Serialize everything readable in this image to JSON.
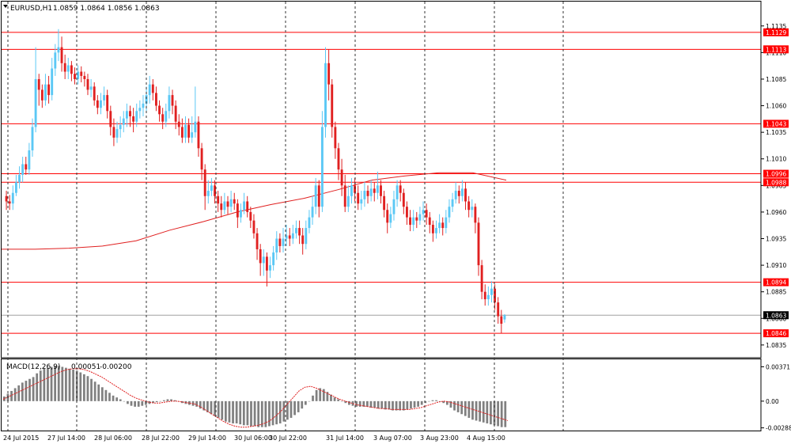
{
  "chart_data": [
    {
      "type": "candlestick",
      "symbol": "EURUSD,H1",
      "ohlc_label": "1.0859 1.0864 1.0856 1.0863",
      "price_axis": {
        "ylim": [
          1.0823,
          1.1146
        ],
        "ticks": [
          "1.1135",
          "1.1110",
          "1.1085",
          "1.1060",
          "1.1035",
          "1.1010",
          "1.0985",
          "1.0960",
          "1.0935",
          "1.0910",
          "1.0885",
          "1.0860",
          "1.0835"
        ]
      },
      "horizontal_levels": [
        "1.1129",
        "1.1113",
        "1.1043",
        "1.0996",
        "1.0988",
        "1.0894",
        "1.0846"
      ],
      "current_price": "1.0863",
      "moving_average_approx": [
        1.0925,
        1.0925,
        1.0926,
        1.0928,
        1.0933,
        1.0943,
        1.0951,
        1.096,
        1.0967,
        1.0973,
        1.0981,
        1.099,
        1.0994,
        1.0997,
        1.0997,
        1.099
      ],
      "candles": [
        [
          1.0975,
          1.097,
          1.098,
          1.0962
        ],
        [
          1.097,
          1.0968,
          1.0976,
          1.0962
        ],
        [
          1.0968,
          1.0978,
          1.0985,
          1.0962
        ],
        [
          1.0978,
          1.0988,
          1.0995,
          1.0975
        ],
        [
          1.0988,
          1.0995,
          1.1003,
          1.0982
        ],
        [
          1.0995,
          1.1005,
          1.1012,
          1.0988
        ],
        [
          1.1005,
          1.1,
          1.1012,
          1.0995
        ],
        [
          1.1,
          1.1018,
          1.1025,
          1.0995
        ],
        [
          1.1018,
          1.104,
          1.1048,
          1.1012
        ],
        [
          1.104,
          1.1085,
          1.1115,
          1.1035
        ],
        [
          1.1085,
          1.1075,
          1.109,
          1.106
        ],
        [
          1.1075,
          1.1065,
          1.108,
          1.1058
        ],
        [
          1.1065,
          1.108,
          1.109,
          1.106
        ],
        [
          1.108,
          1.107,
          1.1088,
          1.1062
        ],
        [
          1.107,
          1.1095,
          1.1105,
          1.1065
        ],
        [
          1.1095,
          1.111,
          1.1118,
          1.1088
        ],
        [
          1.111,
          1.1115,
          1.1132,
          1.1102
        ],
        [
          1.1115,
          1.11,
          1.1125,
          1.1092
        ],
        [
          1.11,
          1.1092,
          1.1108,
          1.1085
        ],
        [
          1.1092,
          1.1098,
          1.1105,
          1.1085
        ],
        [
          1.1098,
          1.109,
          1.1102,
          1.1083
        ],
        [
          1.109,
          1.1085,
          1.1096,
          1.108
        ],
        [
          1.1085,
          1.1092,
          1.1098,
          1.108
        ],
        [
          1.1092,
          1.1088,
          1.1097,
          1.1082
        ],
        [
          1.1088,
          1.1085,
          1.1092,
          1.1078
        ],
        [
          1.1085,
          1.1075,
          1.109,
          1.107
        ],
        [
          1.1075,
          1.1078,
          1.1085,
          1.1068
        ],
        [
          1.1078,
          1.1065,
          1.1082,
          1.106
        ],
        [
          1.1065,
          1.1058,
          1.107,
          1.1052
        ],
        [
          1.1058,
          1.1065,
          1.1072,
          1.1052
        ],
        [
          1.1065,
          1.107,
          1.1078,
          1.106
        ],
        [
          1.107,
          1.1055,
          1.1075,
          1.1048
        ],
        [
          1.1055,
          1.104,
          1.106,
          1.1032
        ],
        [
          1.104,
          1.103,
          1.1048,
          1.1022
        ],
        [
          1.103,
          1.1038,
          1.1045,
          1.1025
        ],
        [
          1.1038,
          1.1042,
          1.105,
          1.103
        ],
        [
          1.1042,
          1.1048,
          1.1055,
          1.1035
        ],
        [
          1.1048,
          1.1055,
          1.1062,
          1.104
        ],
        [
          1.1055,
          1.105,
          1.106,
          1.104
        ],
        [
          1.105,
          1.1045,
          1.1058,
          1.1035
        ],
        [
          1.1045,
          1.1055,
          1.1062,
          1.104
        ],
        [
          1.1055,
          1.1058,
          1.1065,
          1.1048
        ],
        [
          1.1058,
          1.1062,
          1.107,
          1.105
        ],
        [
          1.1062,
          1.107,
          1.1078,
          1.1055
        ],
        [
          1.107,
          1.108,
          1.1088,
          1.1062
        ],
        [
          1.108,
          1.1072,
          1.1085,
          1.1065
        ],
        [
          1.1072,
          1.106,
          1.1078,
          1.1055
        ],
        [
          1.106,
          1.1052,
          1.1065,
          1.1045
        ],
        [
          1.1052,
          1.1045,
          1.1058,
          1.1038
        ],
        [
          1.1045,
          1.1055,
          1.1062,
          1.104
        ],
        [
          1.1055,
          1.107,
          1.1078,
          1.1048
        ],
        [
          1.107,
          1.106,
          1.1075,
          1.1052
        ],
        [
          1.106,
          1.1045,
          1.1065,
          1.1038
        ],
        [
          1.1045,
          1.104,
          1.1052,
          1.1032
        ],
        [
          1.104,
          1.103,
          1.1048,
          1.1025
        ],
        [
          1.103,
          1.1042,
          1.105,
          1.1025
        ],
        [
          1.1042,
          1.103,
          1.1048,
          1.1025
        ],
        [
          1.103,
          1.1035,
          1.105,
          1.1025
        ],
        [
          1.1035,
          1.1045,
          1.1078,
          1.103
        ],
        [
          1.1045,
          1.102,
          1.105,
          1.1012
        ],
        [
          1.102,
          1.1,
          1.1025,
          1.099
        ],
        [
          1.1,
          1.0975,
          1.1005,
          1.0962
        ],
        [
          1.0975,
          1.098,
          1.099,
          1.0968
        ],
        [
          1.098,
          1.0985,
          1.0992,
          1.0975
        ],
        [
          1.0985,
          1.0975,
          1.099,
          1.0968
        ],
        [
          1.0975,
          1.0968,
          1.098,
          1.096
        ],
        [
          1.0968,
          1.0962,
          1.0975,
          1.0955
        ],
        [
          1.0962,
          1.097,
          1.0978,
          1.0958
        ],
        [
          1.097,
          1.0965,
          1.0975,
          1.0958
        ],
        [
          1.0965,
          1.0972,
          1.098,
          1.096
        ],
        [
          1.0972,
          1.0968,
          1.0978,
          1.0962
        ],
        [
          1.0968,
          1.0955,
          1.0972,
          1.0945
        ],
        [
          1.0955,
          1.0962,
          1.0968,
          1.095
        ],
        [
          1.0962,
          1.097,
          1.0978,
          1.0958
        ],
        [
          1.097,
          1.096,
          1.0975,
          1.0955
        ],
        [
          1.096,
          1.0952,
          1.0965,
          1.0945
        ],
        [
          1.0952,
          1.094,
          1.0958,
          1.0935
        ],
        [
          1.094,
          1.0925,
          1.0945,
          1.0915
        ],
        [
          1.0925,
          1.0912,
          1.093,
          1.09
        ],
        [
          1.0912,
          1.0918,
          1.0925,
          1.09
        ],
        [
          1.0918,
          1.0905,
          1.0922,
          1.089
        ],
        [
          1.0905,
          1.091,
          1.0918,
          1.0898
        ],
        [
          1.091,
          1.0922,
          1.0928,
          1.0905
        ],
        [
          1.0922,
          1.0935,
          1.0942,
          1.0915
        ],
        [
          1.0935,
          1.0928,
          1.094,
          1.0922
        ],
        [
          1.0928,
          1.0935,
          1.0945,
          1.0922
        ],
        [
          1.0935,
          1.0938,
          1.0948,
          1.0928
        ],
        [
          1.0938,
          1.0935,
          1.0945,
          1.0928
        ],
        [
          1.0935,
          1.094,
          1.0948,
          1.093
        ],
        [
          1.094,
          1.0945,
          1.0952,
          1.0935
        ],
        [
          1.0945,
          1.0938,
          1.0952,
          1.093
        ],
        [
          1.0938,
          1.093,
          1.0945,
          1.092
        ],
        [
          1.093,
          1.0945,
          1.0952,
          1.0925
        ],
        [
          1.0945,
          1.0955,
          1.0962,
          1.094
        ],
        [
          1.0955,
          1.0965,
          1.0975,
          1.0948
        ],
        [
          1.0965,
          1.0985,
          1.0992,
          1.0958
        ],
        [
          1.0985,
          1.0965,
          1.099,
          1.0955
        ],
        [
          1.0965,
          1.104,
          1.1055,
          1.096
        ],
        [
          1.104,
          1.11,
          1.1115,
          1.103
        ],
        [
          1.11,
          1.108,
          1.1113,
          1.1065
        ],
        [
          1.108,
          1.104,
          1.1085,
          1.103
        ],
        [
          1.104,
          1.102,
          1.1045,
          1.101
        ],
        [
          1.102,
          1.1,
          1.1025,
          1.099
        ],
        [
          1.1,
          1.0985,
          1.101,
          1.0975
        ],
        [
          1.0985,
          1.0965,
          1.0995,
          1.096
        ],
        [
          1.0965,
          1.0975,
          1.0985,
          1.096
        ],
        [
          1.0975,
          1.0985,
          1.0992,
          1.0968
        ],
        [
          1.0985,
          1.0978,
          1.0992,
          1.097
        ],
        [
          1.0978,
          1.0968,
          1.0985,
          1.0962
        ],
        [
          1.0968,
          1.0972,
          1.098,
          1.0962
        ],
        [
          1.0972,
          1.098,
          1.0988,
          1.0965
        ],
        [
          1.098,
          1.0975,
          1.0985,
          1.0968
        ],
        [
          1.0975,
          1.0982,
          1.099,
          1.097
        ],
        [
          1.0982,
          1.0978,
          1.0988,
          1.097
        ],
        [
          1.0978,
          1.0985,
          1.0998,
          1.0972
        ],
        [
          1.0985,
          1.0975,
          1.099,
          1.0968
        ],
        [
          1.0975,
          1.0962,
          1.098,
          1.0955
        ],
        [
          1.0962,
          1.095,
          1.0968,
          1.094
        ],
        [
          1.095,
          1.0958,
          1.0965,
          1.0945
        ],
        [
          1.0958,
          1.0972,
          1.098,
          1.0952
        ],
        [
          1.0972,
          1.0985,
          1.099,
          1.0965
        ],
        [
          1.0985,
          1.0978,
          1.099,
          1.097
        ],
        [
          1.0978,
          1.0965,
          1.0982,
          1.0958
        ],
        [
          1.0965,
          1.0955,
          1.097,
          1.0948
        ],
        [
          1.0955,
          1.0948,
          1.0962,
          1.0942
        ],
        [
          1.0948,
          1.0955,
          1.0962,
          1.0942
        ],
        [
          1.0955,
          1.0952,
          1.096,
          1.0945
        ],
        [
          1.0952,
          1.0958,
          1.0965,
          1.0948
        ],
        [
          1.0958,
          1.0962,
          1.097,
          1.0952
        ],
        [
          1.0962,
          1.0955,
          1.0968,
          1.0948
        ],
        [
          1.0955,
          1.0948,
          1.096,
          1.094
        ],
        [
          1.0948,
          1.094,
          1.0952,
          1.0932
        ],
        [
          1.094,
          1.0945,
          1.0952,
          1.0935
        ],
        [
          1.0945,
          1.095,
          1.0958,
          1.094
        ],
        [
          1.095,
          1.0945,
          1.0955,
          1.0938
        ],
        [
          1.0945,
          1.0955,
          1.0962,
          1.094
        ],
        [
          1.0955,
          1.0965,
          1.0972,
          1.095
        ],
        [
          1.0965,
          1.0972,
          1.0978,
          1.096
        ],
        [
          1.0972,
          1.098,
          1.0988,
          1.0968
        ],
        [
          1.098,
          1.0975,
          1.0985,
          1.0968
        ],
        [
          1.0975,
          1.0982,
          1.099,
          1.097
        ],
        [
          1.0982,
          1.097,
          1.0988,
          1.0962
        ],
        [
          1.097,
          1.0962,
          1.0975,
          1.0955
        ],
        [
          1.0962,
          1.0965,
          1.0972,
          1.0955
        ],
        [
          1.0965,
          1.095,
          1.0968,
          1.094
        ],
        [
          1.095,
          1.091,
          1.0955,
          1.09
        ],
        [
          1.091,
          1.0885,
          1.0915,
          1.0878
        ],
        [
          1.0885,
          1.0878,
          1.0892,
          1.0872
        ],
        [
          1.0878,
          1.0882,
          1.089,
          1.0872
        ],
        [
          1.0882,
          1.0888,
          1.0895,
          1.0875
        ],
        [
          1.0888,
          1.0875,
          1.0892,
          1.0868
        ],
        [
          1.0875,
          1.0862,
          1.088,
          1.0855
        ],
        [
          1.0862,
          1.0855,
          1.0868,
          1.0846
        ],
        [
          1.0859,
          1.0863,
          1.0864,
          1.0856
        ]
      ]
    },
    {
      "type": "bar",
      "label": "MACD(12,26,9)",
      "value_label_1": "0.00051",
      "value_label_2": "-0.00200",
      "ticks": [
        "0.00371",
        "0.00",
        "-0.00288"
      ],
      "ylim": [
        -0.003,
        0.004
      ],
      "histogram": [
        0.0005,
        0.0008,
        0.0011,
        0.0014,
        0.0017,
        0.002,
        0.0022,
        0.0024,
        0.0026,
        0.003,
        0.0033,
        0.0035,
        0.0036,
        0.0037,
        0.0038,
        0.0038,
        0.0037,
        0.0036,
        0.0035,
        0.0034,
        0.0033,
        0.0031,
        0.0029,
        0.0027,
        0.0024,
        0.0021,
        0.0018,
        0.0015,
        0.0012,
        0.0009,
        0.0006,
        0.0004,
        0.0002,
        0.0,
        -0.0003,
        -0.0005,
        -0.0006,
        -0.0006,
        -0.0005,
        -0.0004,
        -0.0003,
        -0.0002,
        -0.0001,
        0.0,
        0.0001,
        0.0002,
        0.0002,
        0.0001,
        0.0,
        -0.0002,
        -0.0003,
        -0.0004,
        -0.0005,
        -0.0006,
        -0.0008,
        -0.001,
        -0.0012,
        -0.0014,
        -0.0016,
        -0.0018,
        -0.002,
        -0.0022,
        -0.0023,
        -0.0024,
        -0.0024,
        -0.0025,
        -0.0026,
        -0.0026,
        -0.0027,
        -0.0027,
        -0.0028,
        -0.0028,
        -0.0028,
        -0.0027,
        -0.0026,
        -0.0025,
        -0.0024,
        -0.0022,
        -0.002,
        -0.0018,
        -0.0015,
        -0.0012,
        -0.0008,
        -0.0004,
        0.0,
        0.0006,
        0.0012,
        0.0014,
        0.0013,
        0.001,
        0.0007,
        0.0004,
        0.0002,
        0.0,
        -0.0002,
        -0.0004,
        -0.0005,
        -0.0006,
        -0.0006,
        -0.0006,
        -0.0006,
        -0.0007,
        -0.0007,
        -0.0008,
        -0.0008,
        -0.0009,
        -0.0009,
        -0.001,
        -0.001,
        -0.001,
        -0.001,
        -0.0009,
        -0.0008,
        -0.0007,
        -0.0006,
        -0.0004,
        -0.0002,
        0.0,
        0.0001,
        0.0001,
        0.0,
        -0.0002,
        -0.0004,
        -0.0007,
        -0.001,
        -0.0012,
        -0.0014,
        -0.0016,
        -0.0018,
        -0.002,
        -0.0021,
        -0.0022,
        -0.0023,
        -0.0024,
        -0.0025,
        -0.0026,
        -0.0027,
        -0.0028,
        -0.0028
      ],
      "signal": [
        0.0002,
        0.0005,
        0.0008,
        0.0011,
        0.0014,
        0.0017,
        0.002,
        0.0023,
        0.0026,
        0.0029,
        0.0032,
        0.0034,
        0.0035,
        0.0035,
        0.0034,
        0.0032,
        0.0029,
        0.0026,
        0.0022,
        0.0018,
        0.0014,
        0.001,
        0.0006,
        0.0003,
        0.0001,
        -0.0001,
        -0.0002,
        -0.0002,
        -0.0001,
        0.0,
        0.0,
        -0.0001,
        -0.0002,
        -0.0003,
        -0.0006,
        -0.001,
        -0.0014,
        -0.0018,
        -0.0022,
        -0.0025,
        -0.0027,
        -0.0028,
        -0.0028,
        -0.0027,
        -0.0026,
        -0.0024,
        -0.0021,
        -0.0016,
        -0.001,
        -0.0003,
        0.0004,
        0.0011,
        0.0015,
        0.0016,
        0.0014,
        0.0011,
        0.0008,
        0.0005,
        0.0002,
        0.0,
        -0.0002,
        -0.0004,
        -0.0005,
        -0.0006,
        -0.0007,
        -0.0008,
        -0.0008,
        -0.0009,
        -0.0009,
        -0.0009,
        -0.0009,
        -0.0008,
        -0.0007,
        -0.0005,
        -0.0003,
        -0.0001,
        0.0,
        -0.0001,
        -0.0003,
        -0.0005,
        -0.0007,
        -0.0009,
        -0.0011,
        -0.0013,
        -0.0015,
        -0.0017,
        -0.0019,
        -0.0021
      ]
    }
  ],
  "time_axis": [
    "24 Jul 2015",
    "27 Jul 14:00",
    "28 Jul 06:00",
    "28 Jul 22:00",
    "29 Jul 14:00",
    "30 Jul 06:00",
    "30 Jul 22:00",
    "31 Jul 14:00",
    "3 Aug 07:00",
    "3 Aug 23:00",
    "4 Aug 15:00"
  ],
  "colors": {
    "bull": "#5bc8f5",
    "bear": "#e02020",
    "level": "#ff0000",
    "ma": "#e02020",
    "hist": "#808080",
    "signal": "#e02020",
    "grid": "#333333",
    "current_label": "#000000"
  }
}
